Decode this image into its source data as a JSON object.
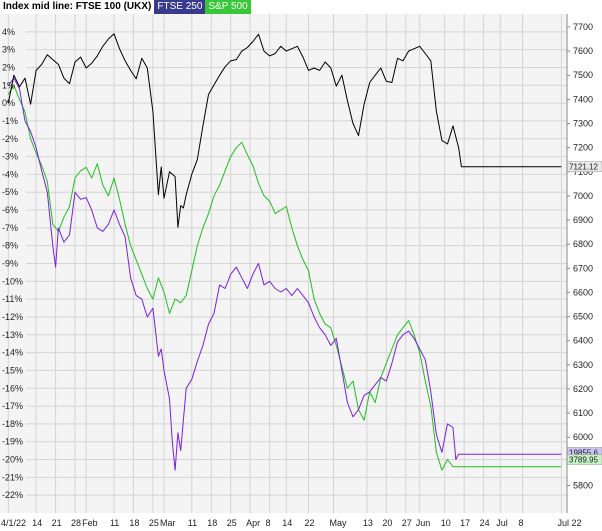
{
  "legend": {
    "main_label": "Index mid line: FTSE 100 (UKX)",
    "series2_label": "FTSE 250",
    "series3_label": "S&P 500"
  },
  "colors": {
    "ftse100": "#000000",
    "ftse250": "#7b1fe0",
    "sp500": "#1fbf1f",
    "grid": "#d4d4d4",
    "plot_bg": "#f4f4f4"
  },
  "chart_data": {
    "type": "line",
    "title": "",
    "left_axis": {
      "unit": "percent",
      "ylim": [
        -23,
        5
      ],
      "ticks": [
        "4%",
        "3%",
        "2%",
        "1%",
        "0%",
        "-1%",
        "-2%",
        "-3%",
        "-4%",
        "-5%",
        "-6%",
        "-7%",
        "-8%",
        "-9%",
        "-10%",
        "-11%",
        "-12%",
        "-13%",
        "-14%",
        "-15%",
        "-16%",
        "-17%",
        "-18%",
        "-19%",
        "-20%",
        "-21%",
        "-22%"
      ],
      "tick_values": [
        4,
        3,
        2,
        1,
        0,
        -1,
        -2,
        -3,
        -4,
        -5,
        -6,
        -7,
        -8,
        -9,
        -10,
        -11,
        -12,
        -13,
        -14,
        -15,
        -16,
        -17,
        -18,
        -19,
        -20,
        -21,
        -22
      ]
    },
    "right_axis": {
      "unit": "FTSE 100 points",
      "ticks": [
        "7700",
        "7600",
        "7500",
        "7400",
        "7300",
        "7200",
        "7100",
        "7000",
        "6900",
        "6800",
        "6700",
        "6600",
        "6500",
        "6400",
        "6300",
        "6200",
        "6100",
        "6000",
        "5900",
        "5800"
      ],
      "tick_values": [
        7700,
        7600,
        7500,
        7400,
        7300,
        7200,
        7100,
        7000,
        6900,
        6800,
        6700,
        6600,
        6500,
        6400,
        6300,
        6200,
        6100,
        6000,
        5900,
        5800
      ],
      "reference_value": 7384.54
    },
    "x_axis": {
      "day_range": [
        -3,
        201
      ],
      "ticks": [
        "4/1/22",
        "14",
        "21",
        "28",
        "Feb",
        "11",
        "18",
        "25",
        "Mar",
        "11",
        "18",
        "25",
        "Apr",
        "8",
        "14",
        "22",
        "May",
        "13",
        "20",
        "27",
        "Jun",
        "10",
        "17",
        "24",
        "Jul",
        "8",
        "Jul 22"
      ],
      "tick_days": [
        0,
        10,
        17,
        24,
        28,
        38,
        45,
        52,
        56,
        66,
        73,
        80,
        87,
        94,
        100,
        108,
        117,
        129,
        136,
        143,
        148,
        157,
        164,
        171,
        177,
        185,
        199
      ]
    },
    "grid": true,
    "price_labels": [
      "7121.12",
      "3789.95",
      "19855.6"
    ],
    "series": [
      {
        "name": "FTSE 100 (UKX)",
        "key": "ftse100",
        "points": [
          [
            0,
            7384.5
          ],
          [
            2,
            7500
          ],
          [
            4,
            7452
          ],
          [
            6,
            7488
          ],
          [
            8,
            7380
          ],
          [
            10,
            7520
          ],
          [
            12,
            7545
          ],
          [
            14,
            7585
          ],
          [
            16,
            7565
          ],
          [
            18,
            7545
          ],
          [
            20,
            7488
          ],
          [
            22,
            7465
          ],
          [
            24,
            7555
          ],
          [
            26,
            7575
          ],
          [
            28,
            7530
          ],
          [
            30,
            7550
          ],
          [
            32,
            7580
          ],
          [
            34,
            7620
          ],
          [
            36,
            7650
          ],
          [
            38,
            7672
          ],
          [
            40,
            7610
          ],
          [
            42,
            7560
          ],
          [
            44,
            7520
          ],
          [
            46,
            7485
          ],
          [
            48,
            7570
          ],
          [
            50,
            7530
          ],
          [
            52,
            7350
          ],
          [
            54,
            7005
          ],
          [
            55,
            7120
          ],
          [
            56,
            6990
          ],
          [
            58,
            7100
          ],
          [
            60,
            7080
          ],
          [
            61,
            6870
          ],
          [
            62,
            6960
          ],
          [
            63,
            6950
          ],
          [
            64,
            7005
          ],
          [
            66,
            7090
          ],
          [
            68,
            7150
          ],
          [
            70,
            7290
          ],
          [
            72,
            7420
          ],
          [
            74,
            7460
          ],
          [
            76,
            7500
          ],
          [
            78,
            7535
          ],
          [
            80,
            7560
          ],
          [
            82,
            7565
          ],
          [
            84,
            7600
          ],
          [
            86,
            7615
          ],
          [
            88,
            7640
          ],
          [
            90,
            7670
          ],
          [
            92,
            7600
          ],
          [
            94,
            7580
          ],
          [
            96,
            7590
          ],
          [
            98,
            7620
          ],
          [
            100,
            7600
          ],
          [
            102,
            7610
          ],
          [
            104,
            7620
          ],
          [
            106,
            7575
          ],
          [
            108,
            7520
          ],
          [
            110,
            7530
          ],
          [
            112,
            7520
          ],
          [
            114,
            7555
          ],
          [
            116,
            7530
          ],
          [
            118,
            7455
          ],
          [
            120,
            7500
          ],
          [
            122,
            7395
          ],
          [
            124,
            7300
          ],
          [
            126,
            7250
          ],
          [
            128,
            7380
          ],
          [
            130,
            7470
          ],
          [
            132,
            7500
          ],
          [
            134,
            7530
          ],
          [
            136,
            7475
          ],
          [
            138,
            7470
          ],
          [
            140,
            7570
          ],
          [
            142,
            7560
          ],
          [
            144,
            7600
          ],
          [
            146,
            7610
          ],
          [
            148,
            7620
          ],
          [
            150,
            7590
          ],
          [
            152,
            7560
          ],
          [
            154,
            7350
          ],
          [
            156,
            7230
          ],
          [
            158,
            7215
          ],
          [
            160,
            7290
          ],
          [
            162,
            7200
          ],
          [
            163,
            7121.12
          ],
          [
            199,
            7121.12
          ]
        ]
      },
      {
        "name": "FTSE 250",
        "key": "ftse250",
        "points": [
          [
            0,
            1.0
          ],
          [
            2,
            1.4
          ],
          [
            4,
            0.8
          ],
          [
            6,
            -1.0
          ],
          [
            8,
            -1.6
          ],
          [
            10,
            -2.5
          ],
          [
            12,
            -3.8
          ],
          [
            14,
            -5.0
          ],
          [
            16,
            -8.0
          ],
          [
            17,
            -9.2
          ],
          [
            18,
            -7.0
          ],
          [
            20,
            -7.8
          ],
          [
            22,
            -7.4
          ],
          [
            24,
            -5.0
          ],
          [
            26,
            -5.4
          ],
          [
            28,
            -5.3
          ],
          [
            30,
            -6.0
          ],
          [
            32,
            -7.0
          ],
          [
            34,
            -7.2
          ],
          [
            36,
            -6.8
          ],
          [
            38,
            -6.0
          ],
          [
            40,
            -6.8
          ],
          [
            42,
            -7.5
          ],
          [
            44,
            -9.8
          ],
          [
            46,
            -10.8
          ],
          [
            48,
            -11.0
          ],
          [
            50,
            -12.0
          ],
          [
            52,
            -11.5
          ],
          [
            54,
            -14.2
          ],
          [
            55,
            -13.8
          ],
          [
            56,
            -15.0
          ],
          [
            58,
            -16.6
          ],
          [
            59,
            -19.0
          ],
          [
            60,
            -20.6
          ],
          [
            61,
            -18.5
          ],
          [
            62,
            -19.5
          ],
          [
            64,
            -16.0
          ],
          [
            66,
            -15.5
          ],
          [
            68,
            -14.5
          ],
          [
            70,
            -13.6
          ],
          [
            72,
            -12.4
          ],
          [
            74,
            -11.8
          ],
          [
            76,
            -10.2
          ],
          [
            78,
            -10.4
          ],
          [
            80,
            -9.6
          ],
          [
            82,
            -9.2
          ],
          [
            84,
            -9.8
          ],
          [
            86,
            -10.4
          ],
          [
            88,
            -9.6
          ],
          [
            90,
            -9.0
          ],
          [
            92,
            -10.2
          ],
          [
            94,
            -10.0
          ],
          [
            96,
            -10.4
          ],
          [
            98,
            -10.6
          ],
          [
            100,
            -10.4
          ],
          [
            102,
            -10.8
          ],
          [
            104,
            -10.4
          ],
          [
            106,
            -10.8
          ],
          [
            108,
            -11.2
          ],
          [
            110,
            -12.0
          ],
          [
            112,
            -12.6
          ],
          [
            114,
            -13.0
          ],
          [
            116,
            -13.6
          ],
          [
            118,
            -13.2
          ],
          [
            120,
            -15.0
          ],
          [
            122,
            -16.8
          ],
          [
            124,
            -17.6
          ],
          [
            126,
            -17.2
          ],
          [
            128,
            -16.4
          ],
          [
            130,
            -16.2
          ],
          [
            132,
            -15.8
          ],
          [
            134,
            -15.4
          ],
          [
            136,
            -15.6
          ],
          [
            138,
            -14.6
          ],
          [
            140,
            -13.4
          ],
          [
            142,
            -13.0
          ],
          [
            144,
            -12.8
          ],
          [
            146,
            -13.2
          ],
          [
            148,
            -13.8
          ],
          [
            150,
            -14.4
          ],
          [
            152,
            -16.2
          ],
          [
            154,
            -18.6
          ],
          [
            156,
            -19.6
          ],
          [
            158,
            -18.0
          ],
          [
            160,
            -18.2
          ],
          [
            161,
            -20.0
          ],
          [
            162,
            -19.7
          ],
          [
            199,
            -19.7
          ]
        ]
      },
      {
        "name": "S&P 500",
        "key": "sp500",
        "points": [
          [
            0,
            0.5
          ],
          [
            2,
            1.0
          ],
          [
            4,
            0.2
          ],
          [
            6,
            -0.5
          ],
          [
            8,
            -2.0
          ],
          [
            10,
            -2.8
          ],
          [
            12,
            -3.5
          ],
          [
            14,
            -4.4
          ],
          [
            16,
            -6.8
          ],
          [
            18,
            -7.2
          ],
          [
            20,
            -6.4
          ],
          [
            22,
            -5.8
          ],
          [
            24,
            -4.2
          ],
          [
            26,
            -3.8
          ],
          [
            28,
            -3.6
          ],
          [
            30,
            -4.2
          ],
          [
            32,
            -3.4
          ],
          [
            34,
            -4.6
          ],
          [
            36,
            -5.2
          ],
          [
            38,
            -4.2
          ],
          [
            40,
            -5.4
          ],
          [
            42,
            -6.8
          ],
          [
            44,
            -8.0
          ],
          [
            46,
            -8.8
          ],
          [
            48,
            -9.6
          ],
          [
            50,
            -10.4
          ],
          [
            52,
            -11.0
          ],
          [
            54,
            -9.8
          ],
          [
            56,
            -10.6
          ],
          [
            58,
            -11.8
          ],
          [
            60,
            -11.0
          ],
          [
            62,
            -11.2
          ],
          [
            64,
            -10.8
          ],
          [
            66,
            -9.4
          ],
          [
            68,
            -8.0
          ],
          [
            70,
            -7.0
          ],
          [
            72,
            -6.2
          ],
          [
            74,
            -5.2
          ],
          [
            76,
            -4.6
          ],
          [
            78,
            -3.8
          ],
          [
            80,
            -3.0
          ],
          [
            82,
            -2.5
          ],
          [
            84,
            -2.2
          ],
          [
            86,
            -2.9
          ],
          [
            88,
            -3.5
          ],
          [
            90,
            -4.5
          ],
          [
            92,
            -5.2
          ],
          [
            94,
            -5.5
          ],
          [
            96,
            -6.2
          ],
          [
            98,
            -6.0
          ],
          [
            100,
            -5.8
          ],
          [
            102,
            -7.0
          ],
          [
            104,
            -8.0
          ],
          [
            106,
            -8.8
          ],
          [
            108,
            -9.4
          ],
          [
            110,
            -11.0
          ],
          [
            112,
            -11.8
          ],
          [
            114,
            -12.4
          ],
          [
            116,
            -12.6
          ],
          [
            118,
            -13.6
          ],
          [
            120,
            -14.8
          ],
          [
            122,
            -16.0
          ],
          [
            124,
            -15.6
          ],
          [
            126,
            -17.2
          ],
          [
            128,
            -17.8
          ],
          [
            130,
            -16.2
          ],
          [
            132,
            -16.8
          ],
          [
            134,
            -15.4
          ],
          [
            136,
            -14.6
          ],
          [
            138,
            -13.8
          ],
          [
            140,
            -13.0
          ],
          [
            142,
            -12.6
          ],
          [
            144,
            -12.2
          ],
          [
            146,
            -13.0
          ],
          [
            148,
            -14.0
          ],
          [
            150,
            -15.6
          ],
          [
            152,
            -17.0
          ],
          [
            154,
            -19.6
          ],
          [
            156,
            -20.6
          ],
          [
            158,
            -20.0
          ],
          [
            160,
            -20.4
          ],
          [
            199,
            -20.4
          ]
        ]
      }
    ]
  }
}
